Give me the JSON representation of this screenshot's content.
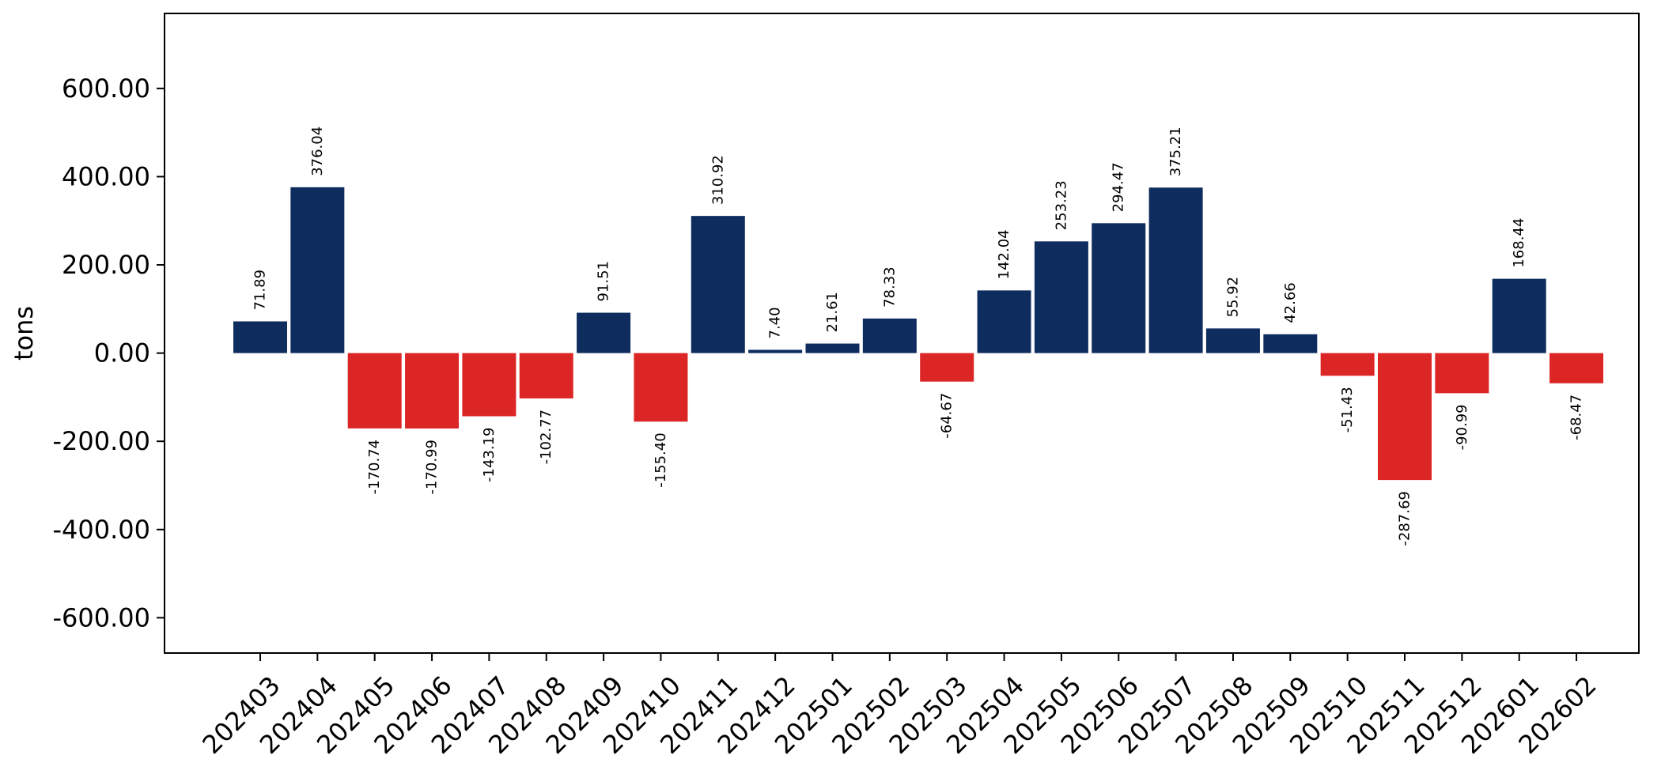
{
  "chart_data": {
    "type": "bar",
    "title": "",
    "xlabel": "",
    "ylabel": "tons",
    "ylim": [
      -680,
      770
    ],
    "yticks": [
      -600,
      -400,
      -200,
      0,
      200,
      400,
      600
    ],
    "ytick_labels": [
      "-600.00",
      "-400.00",
      "-200.00",
      "0.00",
      "200.00",
      "400.00",
      "600.00"
    ],
    "grid": false,
    "legend": "none",
    "categories": [
      "202403",
      "202404",
      "202405",
      "202406",
      "202407",
      "202408",
      "202409",
      "202410",
      "202411",
      "202412",
      "202501",
      "202502",
      "202503",
      "202504",
      "202505",
      "202506",
      "202507",
      "202508",
      "202509",
      "202510",
      "202511",
      "202512",
      "202601",
      "202602"
    ],
    "values": [
      71.89,
      376.04,
      -170.74,
      -170.99,
      -143.19,
      -102.77,
      91.51,
      -155.4,
      310.92,
      7.4,
      21.61,
      78.33,
      -64.67,
      142.04,
      253.23,
      294.47,
      375.21,
      55.92,
      42.66,
      -51.43,
      -287.69,
      -90.99,
      168.44,
      -68.47
    ],
    "data_labels": [
      "71.89",
      "376.04",
      "-170.74",
      "-170.99",
      "-143.19",
      "-102.77",
      "91.51",
      "-155.40",
      "310.92",
      "7.40",
      "21.61",
      "78.33",
      "-64.67",
      "142.04",
      "253.23",
      "294.47",
      "375.21",
      "55.92",
      "42.66",
      "-51.43",
      "-287.69",
      "-90.99",
      "168.44",
      "-68.47"
    ],
    "colors": {
      "positive": "#0e2d5e",
      "negative": "#dc2626"
    }
  }
}
